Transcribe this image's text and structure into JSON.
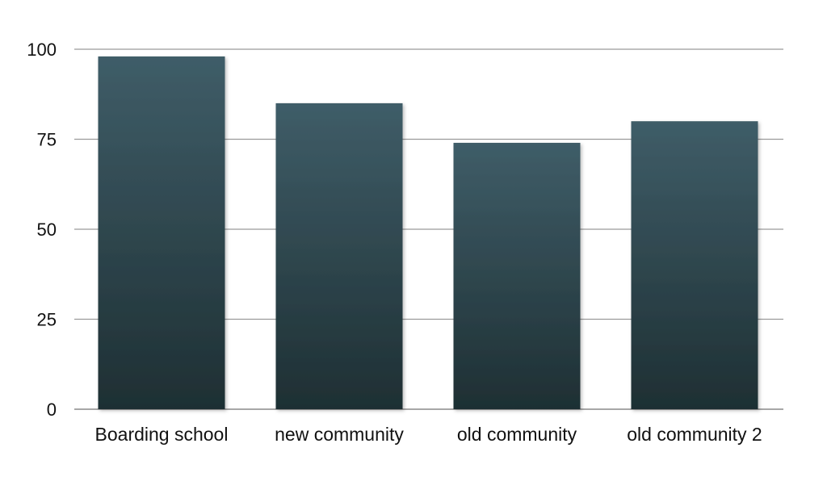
{
  "chart_data": {
    "type": "bar",
    "title": "",
    "xlabel": "",
    "ylabel": "",
    "categories": [
      "Boarding school",
      "new community",
      "old community",
      "old community 2"
    ],
    "values": [
      98,
      85,
      74,
      80
    ],
    "ylim": [
      0,
      100
    ],
    "yticks": [
      0,
      25,
      50,
      75,
      100
    ],
    "grid": true,
    "legend": "none",
    "colors": {
      "bar_top": "#3f5d68",
      "bar_bottom": "#1e2f33",
      "grid": "#9a9a9a",
      "text": "#111111"
    }
  }
}
